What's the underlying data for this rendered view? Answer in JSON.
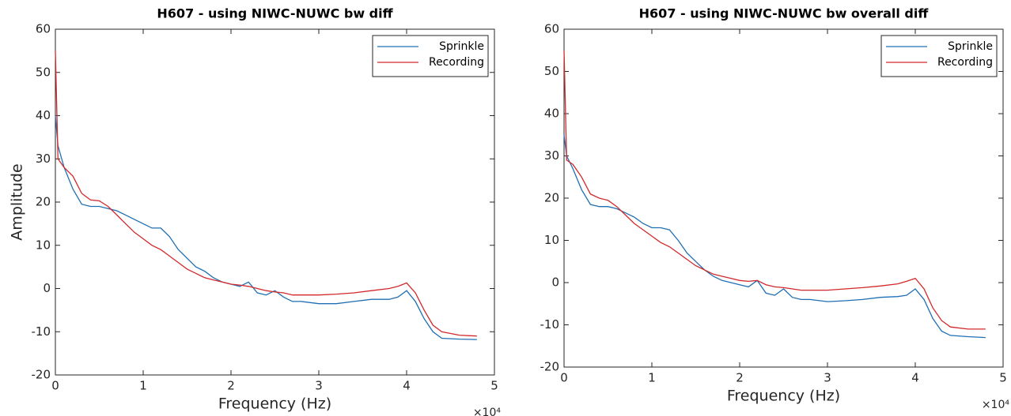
{
  "chart_data": [
    {
      "type": "line",
      "title": "H607 - using NIWC-NUWC bw diff",
      "x_label": "Frequency (Hz)",
      "y_label": "Amplitude",
      "x_exponent_label": "×10⁴",
      "xlim": [
        0,
        50000
      ],
      "ylim": [
        -20,
        60
      ],
      "xticks": [
        {
          "value": 0,
          "label": "0"
        },
        {
          "value": 10000,
          "label": "1"
        },
        {
          "value": 20000,
          "label": "2"
        },
        {
          "value": 30000,
          "label": "3"
        },
        {
          "value": 40000,
          "label": "4"
        },
        {
          "value": 50000,
          "label": "5"
        }
      ],
      "yticks": [
        -20,
        -10,
        0,
        10,
        20,
        30,
        40,
        50,
        60
      ],
      "legend": "top-right",
      "x": [
        0,
        300,
        1000,
        2000,
        3000,
        4000,
        5000,
        6000,
        7000,
        8000,
        9000,
        10000,
        11000,
        12000,
        13000,
        14000,
        15000,
        16000,
        17000,
        18000,
        19000,
        20000,
        21000,
        22000,
        23000,
        24000,
        25000,
        26000,
        27000,
        28000,
        30000,
        32000,
        34000,
        36000,
        38000,
        39000,
        40000,
        41000,
        42000,
        43000,
        44000,
        46000,
        48000
      ],
      "series": [
        {
          "name": "Sprinkle",
          "color": "#1f6fb4",
          "values": [
            40,
            33,
            28,
            23,
            19.5,
            19,
            19,
            18.5,
            18,
            17,
            16,
            15,
            14,
            14,
            12,
            9,
            7,
            5,
            4,
            2.5,
            1.5,
            1,
            0.5,
            1.5,
            -1,
            -1.5,
            -0.5,
            -2,
            -3,
            -3,
            -3.5,
            -3.5,
            -3,
            -2.5,
            -2.5,
            -2,
            -0.5,
            -3,
            -7,
            -10,
            -11.5,
            -11.7,
            -11.8
          ]
        },
        {
          "name": "Recording",
          "color": "#d3282b",
          "values": [
            55,
            30,
            28,
            26,
            22,
            20.5,
            20.3,
            19,
            17,
            15,
            13,
            11.5,
            10,
            9,
            7.5,
            6,
            4.5,
            3.5,
            2.5,
            2,
            1.5,
            1,
            0.8,
            0.5,
            0,
            -0.5,
            -0.8,
            -1,
            -1.5,
            -1.5,
            -1.5,
            -1.3,
            -1,
            -0.5,
            0,
            0.5,
            1.3,
            -1,
            -5,
            -8.5,
            -10,
            -10.8,
            -11
          ]
        }
      ]
    },
    {
      "type": "line",
      "title": "H607 - using NIWC-NUWC bw overall diff",
      "x_label": "Frequency (Hz)",
      "x_exponent_label": "×10⁴",
      "xlim": [
        0,
        50000
      ],
      "ylim": [
        -20,
        60
      ],
      "xticks": [
        {
          "value": 0,
          "label": "0"
        },
        {
          "value": 10000,
          "label": "1"
        },
        {
          "value": 20000,
          "label": "2"
        },
        {
          "value": 30000,
          "label": "3"
        },
        {
          "value": 40000,
          "label": "4"
        },
        {
          "value": 50000,
          "label": "5"
        }
      ],
      "yticks": [
        -20,
        -10,
        0,
        10,
        20,
        30,
        40,
        50,
        60
      ],
      "legend": "top-right",
      "x": [
        0,
        300,
        1000,
        2000,
        3000,
        4000,
        5000,
        6000,
        7000,
        8000,
        9000,
        10000,
        11000,
        12000,
        13000,
        14000,
        15000,
        16000,
        17000,
        18000,
        19000,
        20000,
        21000,
        22000,
        23000,
        24000,
        25000,
        26000,
        27000,
        28000,
        30000,
        32000,
        34000,
        36000,
        38000,
        39000,
        40000,
        41000,
        42000,
        43000,
        44000,
        46000,
        48000
      ],
      "series": [
        {
          "name": "Sprinkle",
          "color": "#1f6fb4",
          "values": [
            35,
            30,
            27,
            22,
            18.5,
            18,
            18,
            17.5,
            16.5,
            15.5,
            14,
            13,
            13,
            12.5,
            10,
            7,
            5,
            3,
            1.5,
            0.5,
            0,
            -0.5,
            -1,
            0.5,
            -2.5,
            -3,
            -1.5,
            -3.5,
            -4,
            -4,
            -4.5,
            -4.3,
            -4,
            -3.5,
            -3.3,
            -3,
            -1.5,
            -4,
            -8.5,
            -11.5,
            -12.5,
            -12.8,
            -13
          ]
        },
        {
          "name": "Recording",
          "color": "#d3282b",
          "values": [
            55,
            29,
            28,
            25,
            21,
            20,
            19.5,
            18,
            16,
            14,
            12.5,
            11,
            9.5,
            8.5,
            7,
            5.5,
            4,
            3,
            2,
            1.5,
            1,
            0.5,
            0.3,
            0.5,
            -0.5,
            -1,
            -1.2,
            -1.5,
            -1.8,
            -1.8,
            -1.8,
            -1.5,
            -1.2,
            -0.8,
            -0.3,
            0.3,
            1,
            -1.5,
            -6,
            -9,
            -10.5,
            -11,
            -11
          ]
        }
      ]
    }
  ]
}
